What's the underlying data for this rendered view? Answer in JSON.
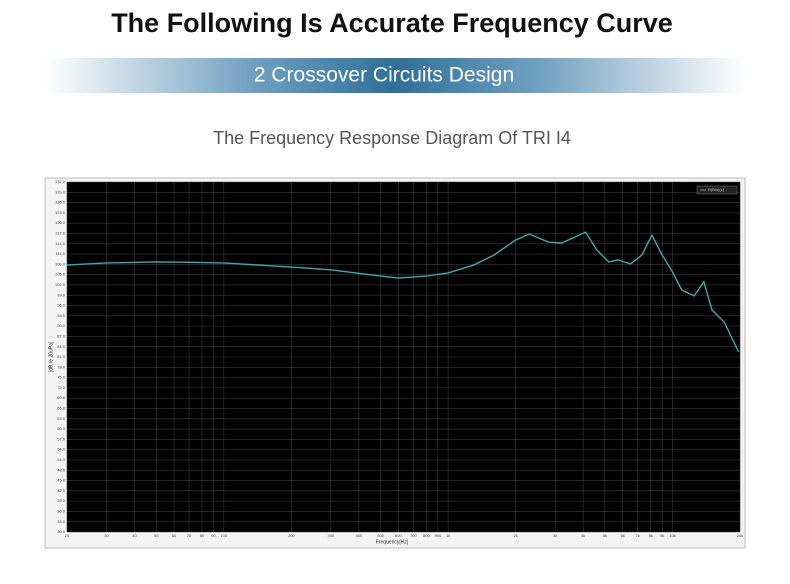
{
  "header": {
    "title": "The Following Is Accurate Frequency Curve",
    "banner": "2 Crossover Circuits Design"
  },
  "chart_data": {
    "type": "line",
    "title": "The Frequency Response Diagram Of TRI I4",
    "x_label": "Frequency[Hz]",
    "y_label": "[dB re 20uPa]",
    "x": [
      20,
      30,
      50,
      70,
      100,
      200,
      300,
      500,
      600,
      800,
      1000,
      1300,
      1600,
      2000,
      2300,
      2800,
      3200,
      3600,
      4100,
      4600,
      5200,
      5700,
      6500,
      7300,
      8100,
      9000,
      10000,
      11000,
      12500,
      13800,
      15000,
      17000,
      19700
    ],
    "series": [
      {
        "name": "R(Blu)(L)",
        "color": "#3fa7b0",
        "values": [
          107.8,
          108.4,
          108.7,
          108.6,
          108.4,
          107.2,
          106.4,
          104.6,
          104.0,
          104.6,
          105.5,
          107.8,
          110.7,
          115.1,
          116.8,
          114.5,
          114.2,
          115.7,
          117.4,
          112.2,
          108.7,
          109.3,
          108.1,
          110.7,
          116.5,
          110.7,
          105.8,
          100.5,
          98.8,
          102.9,
          94.7,
          91.2,
          82.5
        ]
      }
    ],
    "xscale": "log",
    "xlim": [
      20,
      20000
    ],
    "xticks": [
      20,
      30,
      40,
      50,
      60,
      70,
      80,
      90,
      100,
      200,
      300,
      400,
      500,
      600,
      700,
      800,
      900,
      {
        "value": 1000,
        "label": "1k"
      },
      {
        "value": 2000,
        "label": "2k"
      },
      {
        "value": 3000,
        "label": "3k"
      },
      {
        "value": 4000,
        "label": "4k"
      },
      {
        "value": 5000,
        "label": "5k"
      },
      {
        "value": 6000,
        "label": "6k"
      },
      {
        "value": 7000,
        "label": "7k"
      },
      {
        "value": 8000,
        "label": "8k"
      },
      {
        "value": 9000,
        "label": "9k"
      },
      {
        "value": 10000,
        "label": "10k"
      },
      {
        "value": 20000,
        "label": "20k"
      }
    ],
    "ylim": [
      30,
      132
    ],
    "yticks": [
      {
        "value": 30,
        "label": "30.0"
      },
      {
        "value": 33,
        "label": "33.0"
      },
      {
        "value": 36,
        "label": "36.0"
      },
      {
        "value": 39,
        "label": "39.0"
      },
      {
        "value": 42,
        "label": "42.0"
      },
      {
        "value": 45,
        "label": "45.0"
      },
      {
        "value": 48,
        "label": "48.0"
      },
      {
        "value": 51,
        "label": "51.0"
      },
      {
        "value": 54,
        "label": "54.0"
      },
      {
        "value": 57,
        "label": "57.0"
      },
      {
        "value": 60,
        "label": "60.0"
      },
      {
        "value": 63,
        "label": "63.0"
      },
      {
        "value": 66,
        "label": "66.0"
      },
      {
        "value": 69,
        "label": "69.0"
      },
      {
        "value": 72,
        "label": "72.0"
      },
      {
        "value": 75,
        "label": "75.0"
      },
      {
        "value": 78,
        "label": "78.0"
      },
      {
        "value": 81,
        "label": "81.0"
      },
      {
        "value": 84,
        "label": "84.0"
      },
      {
        "value": 87,
        "label": "87.0"
      },
      {
        "value": 90,
        "label": "90.0"
      },
      {
        "value": 93,
        "label": "93.0"
      },
      {
        "value": 96,
        "label": "96.0"
      },
      {
        "value": 99,
        "label": "99.0"
      },
      {
        "value": 102,
        "label": "102.0"
      },
      {
        "value": 105,
        "label": "105.0"
      },
      {
        "value": 108,
        "label": "108.0"
      },
      {
        "value": 111,
        "label": "111.0"
      },
      {
        "value": 114,
        "label": "114.0"
      },
      {
        "value": 117,
        "label": "117.0"
      },
      {
        "value": 120,
        "label": "120.0"
      },
      {
        "value": 123,
        "label": "123.0"
      },
      {
        "value": 126,
        "label": "126.0"
      },
      {
        "value": 129,
        "label": "129.0"
      },
      {
        "value": 132,
        "label": "132.0"
      }
    ],
    "grid": true,
    "legend": "top-right"
  }
}
